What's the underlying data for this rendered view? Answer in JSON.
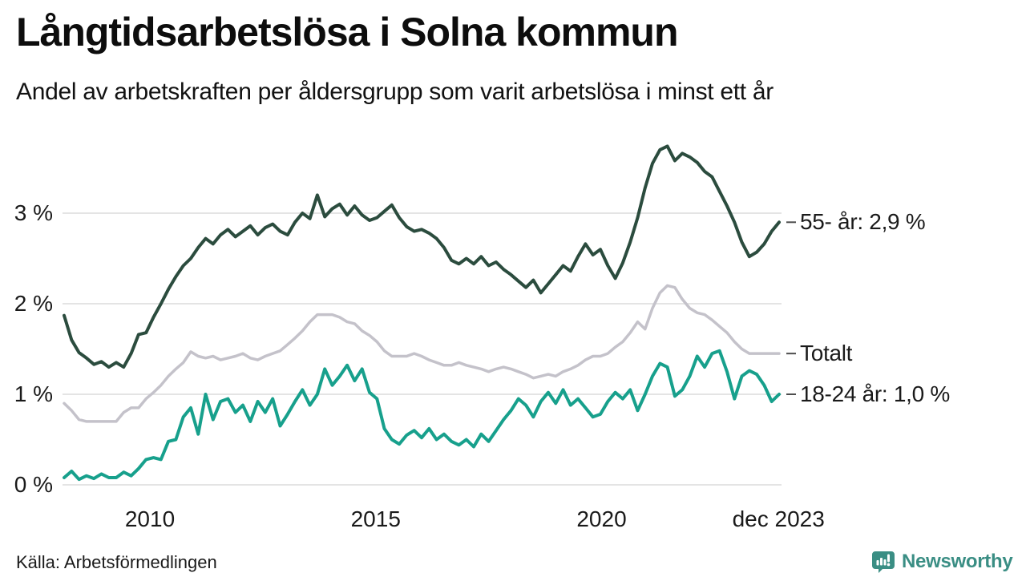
{
  "header": {
    "title": "Långtidsarbetslösa i Solna kommun",
    "subtitle": "Andel av arbetskraften per åldersgrupp som varit arbetslösa i minst ett år"
  },
  "footer": {
    "source": "Källa: Arbetsförmedlingen",
    "brand": "Newsworthy"
  },
  "colors": {
    "series_55": "#2b4c3e",
    "series_total": "#c4c2ca",
    "series_1824": "#17a08c",
    "gridline": "#e4e4e4",
    "end_tick": "#4d4d4d",
    "text": "#1a1a1a",
    "brand_teal": "#3a8e84"
  },
  "chart_data": {
    "type": "line",
    "title": "Långtidsarbetslösa i Solna kommun",
    "subtitle": "Andel av arbetskraften per åldersgrupp som varit arbetslösa i minst ett år",
    "unit": "% av arbetskraften",
    "grid": true,
    "legend_position": "right-end-labels",
    "x_range_years": [
      2008.08,
      2023.92
    ],
    "ylim": [
      0,
      3.9
    ],
    "y_ticks": [
      {
        "label": "0 %",
        "value": 0
      },
      {
        "label": "1 %",
        "value": 1
      },
      {
        "label": "2 %",
        "value": 2
      },
      {
        "label": "3 %",
        "value": 3
      }
    ],
    "x_ticks": [
      {
        "label": "2010",
        "year": 2010
      },
      {
        "label": "2015",
        "year": 2015
      },
      {
        "label": "2020",
        "year": 2020
      },
      {
        "label": "dec 2023",
        "year": 2023.917
      }
    ],
    "series": [
      {
        "name": "55- år",
        "end_label": "55- år: 2,9 %",
        "end_value": 2.9,
        "color": "#2b4c3e",
        "stroke_width": 4,
        "values": [
          1.87,
          1.6,
          1.46,
          1.4,
          1.33,
          1.36,
          1.3,
          1.35,
          1.3,
          1.45,
          1.66,
          1.68,
          1.85,
          2.0,
          2.16,
          2.3,
          2.42,
          2.5,
          2.62,
          2.72,
          2.66,
          2.76,
          2.82,
          2.74,
          2.8,
          2.86,
          2.76,
          2.84,
          2.88,
          2.8,
          2.76,
          2.9,
          3.0,
          2.94,
          3.2,
          2.96,
          3.05,
          3.1,
          2.98,
          3.08,
          2.98,
          2.92,
          2.95,
          3.02,
          3.09,
          2.95,
          2.85,
          2.8,
          2.82,
          2.78,
          2.72,
          2.62,
          2.48,
          2.44,
          2.5,
          2.44,
          2.52,
          2.42,
          2.46,
          2.38,
          2.32,
          2.25,
          2.18,
          2.26,
          2.12,
          2.22,
          2.32,
          2.42,
          2.36,
          2.52,
          2.66,
          2.54,
          2.6,
          2.42,
          2.28,
          2.45,
          2.68,
          2.95,
          3.28,
          3.55,
          3.7,
          3.74,
          3.58,
          3.66,
          3.62,
          3.56,
          3.46,
          3.4,
          3.24,
          3.08,
          2.9,
          2.68,
          2.52,
          2.57,
          2.66,
          2.8,
          2.9
        ]
      },
      {
        "name": "Totalt",
        "end_label": "Totalt",
        "end_value": 1.45,
        "color": "#c4c2ca",
        "stroke_width": 3.5,
        "values": [
          0.9,
          0.82,
          0.72,
          0.7,
          0.7,
          0.7,
          0.7,
          0.7,
          0.8,
          0.85,
          0.85,
          0.95,
          1.02,
          1.1,
          1.2,
          1.28,
          1.35,
          1.47,
          1.42,
          1.4,
          1.42,
          1.38,
          1.4,
          1.42,
          1.45,
          1.4,
          1.38,
          1.42,
          1.45,
          1.48,
          1.55,
          1.62,
          1.7,
          1.8,
          1.88,
          1.88,
          1.88,
          1.85,
          1.8,
          1.78,
          1.7,
          1.65,
          1.58,
          1.48,
          1.42,
          1.42,
          1.42,
          1.45,
          1.42,
          1.38,
          1.35,
          1.32,
          1.32,
          1.35,
          1.32,
          1.3,
          1.28,
          1.25,
          1.28,
          1.3,
          1.28,
          1.25,
          1.22,
          1.18,
          1.2,
          1.22,
          1.2,
          1.25,
          1.28,
          1.32,
          1.38,
          1.42,
          1.42,
          1.45,
          1.52,
          1.58,
          1.68,
          1.8,
          1.72,
          1.95,
          2.12,
          2.2,
          2.18,
          2.05,
          1.95,
          1.9,
          1.88,
          1.82,
          1.75,
          1.68,
          1.58,
          1.5,
          1.45,
          1.45,
          1.45,
          1.45,
          1.45
        ]
      },
      {
        "name": "18-24 år",
        "end_label": "18-24 år: 1,0 %",
        "end_value": 1.0,
        "color": "#17a08c",
        "stroke_width": 4,
        "values": [
          0.08,
          0.15,
          0.06,
          0.1,
          0.07,
          0.12,
          0.08,
          0.08,
          0.14,
          0.1,
          0.18,
          0.28,
          0.3,
          0.28,
          0.48,
          0.5,
          0.75,
          0.85,
          0.56,
          1.0,
          0.72,
          0.92,
          0.95,
          0.8,
          0.88,
          0.7,
          0.92,
          0.8,
          0.95,
          0.65,
          0.78,
          0.92,
          1.05,
          0.88,
          1.0,
          1.28,
          1.1,
          1.2,
          1.32,
          1.15,
          1.28,
          1.02,
          0.95,
          0.62,
          0.5,
          0.45,
          0.55,
          0.6,
          0.52,
          0.62,
          0.5,
          0.56,
          0.48,
          0.44,
          0.5,
          0.42,
          0.56,
          0.48,
          0.6,
          0.72,
          0.82,
          0.95,
          0.88,
          0.75,
          0.92,
          1.02,
          0.9,
          1.05,
          0.88,
          0.95,
          0.85,
          0.75,
          0.78,
          0.92,
          1.02,
          0.95,
          1.05,
          0.82,
          1.0,
          1.2,
          1.34,
          1.3,
          0.98,
          1.05,
          1.2,
          1.42,
          1.3,
          1.45,
          1.48,
          1.25,
          0.95,
          1.2,
          1.26,
          1.22,
          1.1,
          0.92,
          1.0
        ]
      }
    ]
  }
}
